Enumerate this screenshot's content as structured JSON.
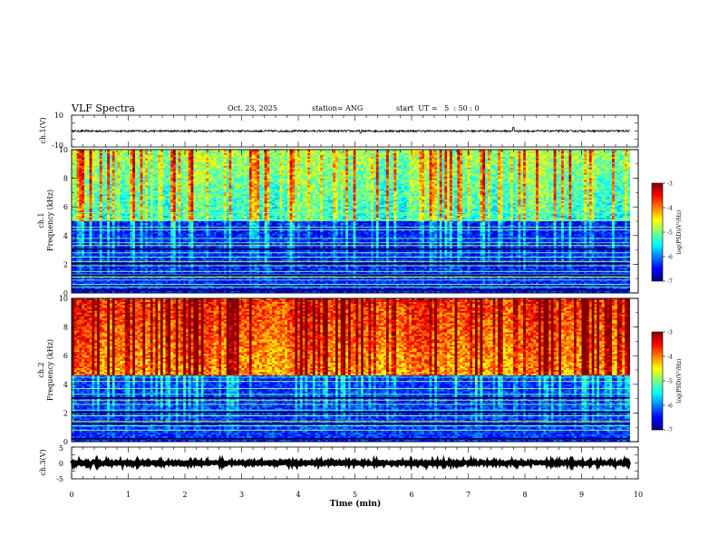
{
  "header": {
    "title": "VLF Spectra",
    "date": "Oct. 23, 2025",
    "station": "station= ANG",
    "start": "start  UT =   5  : 50 : 0"
  },
  "colors": {
    "background": "#ffffff",
    "axes": "#000000",
    "colormap": [
      "#000080",
      "#0000ff",
      "#0080ff",
      "#00ffff",
      "#80ff80",
      "#ffff00",
      "#ff8000",
      "#ff0000",
      "#800000"
    ]
  },
  "chart_data": [
    {
      "id": "ch1-waveform",
      "type": "line",
      "ylabel": "ch.1(V)",
      "ylim": [
        -10,
        10
      ],
      "yticks": [
        "10",
        "-10"
      ],
      "xlim": [
        0,
        10
      ],
      "baseline": 0,
      "noise_amplitude": 0.6,
      "spikes": [
        {
          "x": 7.8,
          "y": 2.4
        },
        {
          "x": 5.1,
          "y": -1.4
        }
      ]
    },
    {
      "id": "ch1-spectrogram",
      "type": "heatmap",
      "ylabel_top": "ch.1",
      "ylabel": "Frequency (kHz)",
      "ylim": [
        0,
        10
      ],
      "yticks": [
        "0",
        "2",
        "4",
        "6",
        "8",
        "10"
      ],
      "xlim": [
        0,
        9.85
      ],
      "colorbar": {
        "label": "log(PSD)(V²/Hz)",
        "range": [
          -7,
          -3
        ],
        "ticks": [
          "-3",
          "-4",
          "-5",
          "-6",
          "-7"
        ]
      },
      "low_band_khz": [
        0,
        5
      ],
      "high_band_base": -5.6,
      "low_band_base": -6.4,
      "spheric_density": 0.35,
      "tone_lines_khz": [
        0.4,
        0.6,
        0.9,
        1.1,
        1.3,
        1.5,
        1.9,
        2.2,
        2.5,
        2.8,
        3.3,
        3.5,
        3.8,
        4.4,
        4.6,
        5.1,
        5.6
      ]
    },
    {
      "id": "ch2-spectrogram",
      "type": "heatmap",
      "ylabel_top": "ch.2",
      "ylabel": "Frequency (kHz)",
      "ylim": [
        0,
        10
      ],
      "yticks": [
        "0",
        "2",
        "4",
        "6",
        "8",
        "10"
      ],
      "xlim": [
        0,
        9.85
      ],
      "colorbar": {
        "label": "log(PSD)(V²/Hz)",
        "range": [
          -7,
          -3
        ],
        "ticks": [
          "-3",
          "-4",
          "-5",
          "-6",
          "-7"
        ]
      },
      "low_band_khz": [
        0,
        4.6
      ],
      "high_band_base": -4.4,
      "low_band_base": -6.3,
      "spheric_density": 0.3,
      "tone_lines_khz": [
        0.8,
        1.1,
        1.4,
        1.8,
        2.2,
        2.6,
        2.9,
        3.3,
        3.7,
        4.2,
        4.5
      ]
    },
    {
      "id": "ch3-waveform",
      "type": "line",
      "ylabel": "ch.3(V)",
      "ylim": [
        -5,
        5
      ],
      "yticks": [
        "5",
        "0",
        "-5"
      ],
      "xlim": [
        0,
        10
      ],
      "baseline": 0,
      "noise_amplitude": 0.35,
      "spikes": []
    }
  ],
  "xaxis": {
    "label": "Time (min)",
    "ticks": [
      "0",
      "1",
      "2",
      "3",
      "4",
      "5",
      "6",
      "7",
      "8",
      "9",
      "10"
    ],
    "range": [
      0,
      10
    ]
  }
}
